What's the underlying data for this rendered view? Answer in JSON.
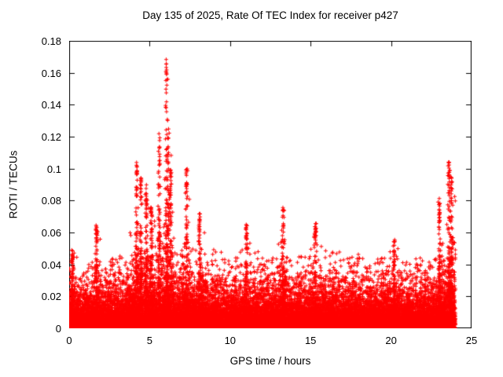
{
  "page": {
    "background_color": "#ffffff"
  },
  "chart_data": {
    "type": "scatter",
    "title": "Day 135 of 2025, Rate Of TEC Index for receiver p427",
    "xlabel": "GPS time / hours",
    "ylabel": "ROTI / TECUs",
    "xlim": [
      0,
      25
    ],
    "ylim": [
      0,
      0.18
    ],
    "xticks": [
      0,
      5,
      10,
      15,
      20,
      25
    ],
    "xtick_labels": [
      "0",
      "5",
      "10",
      "15",
      "20",
      "25"
    ],
    "yticks": [
      0,
      0.02,
      0.04,
      0.06,
      0.08,
      0.1,
      0.12,
      0.14,
      0.16,
      0.18
    ],
    "ytick_labels": [
      "0",
      "0.02",
      "0.04",
      "0.06",
      "0.08",
      "0.1",
      "0.12",
      "0.14",
      "0.16",
      "0.18"
    ],
    "grid": false,
    "legend": "none",
    "marker": "plus",
    "marker_color": "#ff0000",
    "x_data_range": [
      0,
      24
    ],
    "envelope_bins_hours": 0.5,
    "envelope_max": [
      0.051,
      0.04,
      0.042,
      0.065,
      0.038,
      0.045,
      0.048,
      0.075,
      0.105,
      0.092,
      0.082,
      0.122,
      0.175,
      0.065,
      0.1,
      0.07,
      0.072,
      0.06,
      0.055,
      0.05,
      0.047,
      0.06,
      0.065,
      0.052,
      0.046,
      0.05,
      0.076,
      0.046,
      0.05,
      0.047,
      0.066,
      0.06,
      0.056,
      0.052,
      0.047,
      0.05,
      0.046,
      0.042,
      0.046,
      0.052,
      0.056,
      0.042,
      0.042,
      0.046,
      0.042,
      0.052,
      0.082,
      0.105
    ],
    "baseline": {
      "dense_upper_y": 0.02,
      "typical_upper_y": 0.04
    },
    "spikes": [
      {
        "x": 0.2,
        "max": 0.051
      },
      {
        "x": 1.7,
        "max": 0.065
      },
      {
        "x": 4.2,
        "max": 0.105
      },
      {
        "x": 4.45,
        "max": 0.095
      },
      {
        "x": 4.8,
        "max": 0.09
      },
      {
        "x": 5.1,
        "max": 0.08
      },
      {
        "x": 5.6,
        "max": 0.122
      },
      {
        "x": 6.05,
        "max": 0.175
      },
      {
        "x": 6.15,
        "max": 0.12
      },
      {
        "x": 6.3,
        "max": 0.1
      },
      {
        "x": 7.3,
        "max": 0.1
      },
      {
        "x": 8.1,
        "max": 0.072
      },
      {
        "x": 11.0,
        "max": 0.065
      },
      {
        "x": 13.3,
        "max": 0.076
      },
      {
        "x": 15.3,
        "max": 0.066
      },
      {
        "x": 20.2,
        "max": 0.056
      },
      {
        "x": 23.0,
        "max": 0.082
      },
      {
        "x": 23.6,
        "max": 0.105
      },
      {
        "x": 23.75,
        "max": 0.095
      }
    ]
  }
}
